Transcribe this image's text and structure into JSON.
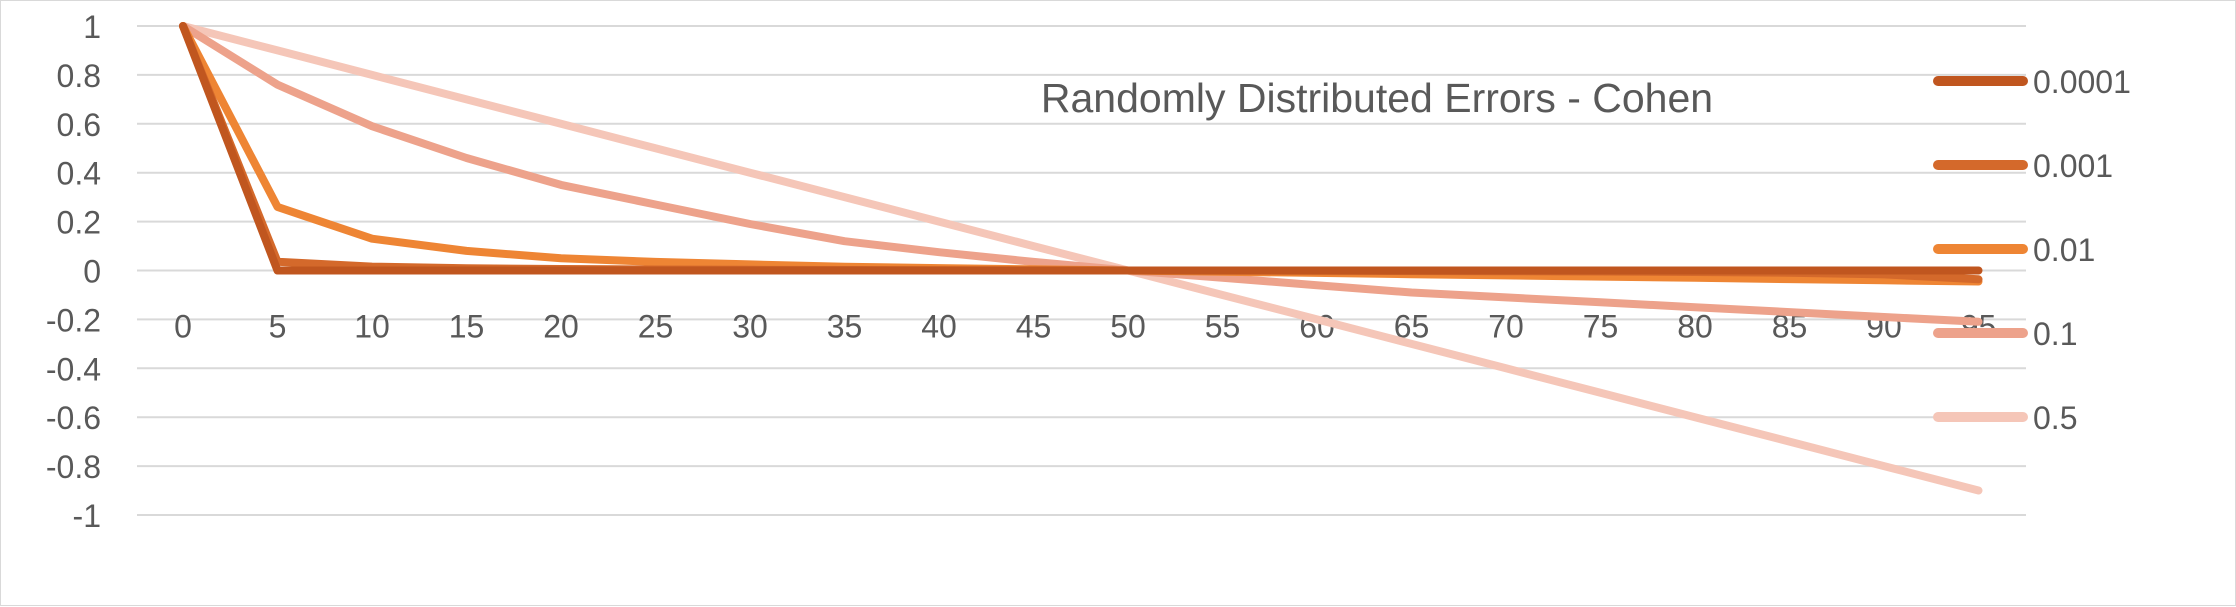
{
  "chart_data": {
    "type": "line",
    "title": "Randomly Distributed Errors - Cohen",
    "xlabel": "",
    "ylabel": "",
    "x": [
      0,
      5,
      10,
      15,
      20,
      25,
      30,
      35,
      40,
      45,
      50,
      55,
      60,
      65,
      70,
      75,
      80,
      85,
      90,
      95
    ],
    "x_tick_labels": [
      "0",
      "5",
      "10",
      "15",
      "20",
      "25",
      "30",
      "35",
      "40",
      "45",
      "50",
      "55",
      "60",
      "65",
      "70",
      "75",
      "80",
      "85",
      "90",
      "95"
    ],
    "ylim": [
      -1,
      1
    ],
    "y_ticks": [
      1,
      0.8,
      0.6,
      0.4,
      0.2,
      0,
      -0.2,
      -0.4,
      -0.6,
      -0.8,
      -1
    ],
    "y_tick_labels": [
      "1",
      "0.8",
      "0.6",
      "0.4",
      "0.2",
      "0",
      "-0.2",
      "-0.4",
      "-0.6",
      "-0.8",
      "-1"
    ],
    "grid": true,
    "legend_position": "right",
    "series": [
      {
        "name": "0.0001",
        "color": "#c0561f",
        "values": [
          1,
          0.0002,
          0.0001,
          7e-05,
          5e-05,
          4e-05,
          3e-05,
          3e-05,
          3e-05,
          2e-05,
          0,
          -2e-05,
          -3e-05,
          -3e-05,
          -3e-05,
          -4e-05,
          -5e-05,
          -7e-05,
          -0.0001,
          -0.0002
        ]
      },
      {
        "name": "0.001",
        "color": "#d4692b",
        "values": [
          1,
          0.036,
          0.016,
          0.009,
          0.006,
          0.004,
          0.003,
          0.002,
          0.001,
          0.0005,
          0,
          -0.0005,
          -0.001,
          -0.002,
          -0.003,
          -0.004,
          -0.006,
          -0.009,
          -0.016,
          -0.036
        ]
      },
      {
        "name": "0.01",
        "color": "#ee8534",
        "values": [
          1,
          0.26,
          0.13,
          0.08,
          0.05,
          0.035,
          0.025,
          0.015,
          0.01,
          0.005,
          0,
          -0.005,
          -0.01,
          -0.015,
          -0.02,
          -0.025,
          -0.03,
          -0.035,
          -0.04,
          -0.045
        ]
      },
      {
        "name": "0.1",
        "color": "#eda28b",
        "values": [
          1,
          0.76,
          0.59,
          0.46,
          0.35,
          0.27,
          0.19,
          0.12,
          0.075,
          0.035,
          0,
          -0.03,
          -0.06,
          -0.09,
          -0.11,
          -0.13,
          -0.15,
          -0.17,
          -0.19,
          -0.21
        ]
      },
      {
        "name": "0.5",
        "color": "#f5c6b8",
        "values": [
          1,
          0.9,
          0.8,
          0.7,
          0.6,
          0.5,
          0.4,
          0.3,
          0.2,
          0.1,
          0,
          -0.1,
          -0.2,
          -0.3,
          -0.4,
          -0.5,
          -0.6,
          -0.7,
          -0.8,
          -0.9
        ]
      }
    ]
  }
}
